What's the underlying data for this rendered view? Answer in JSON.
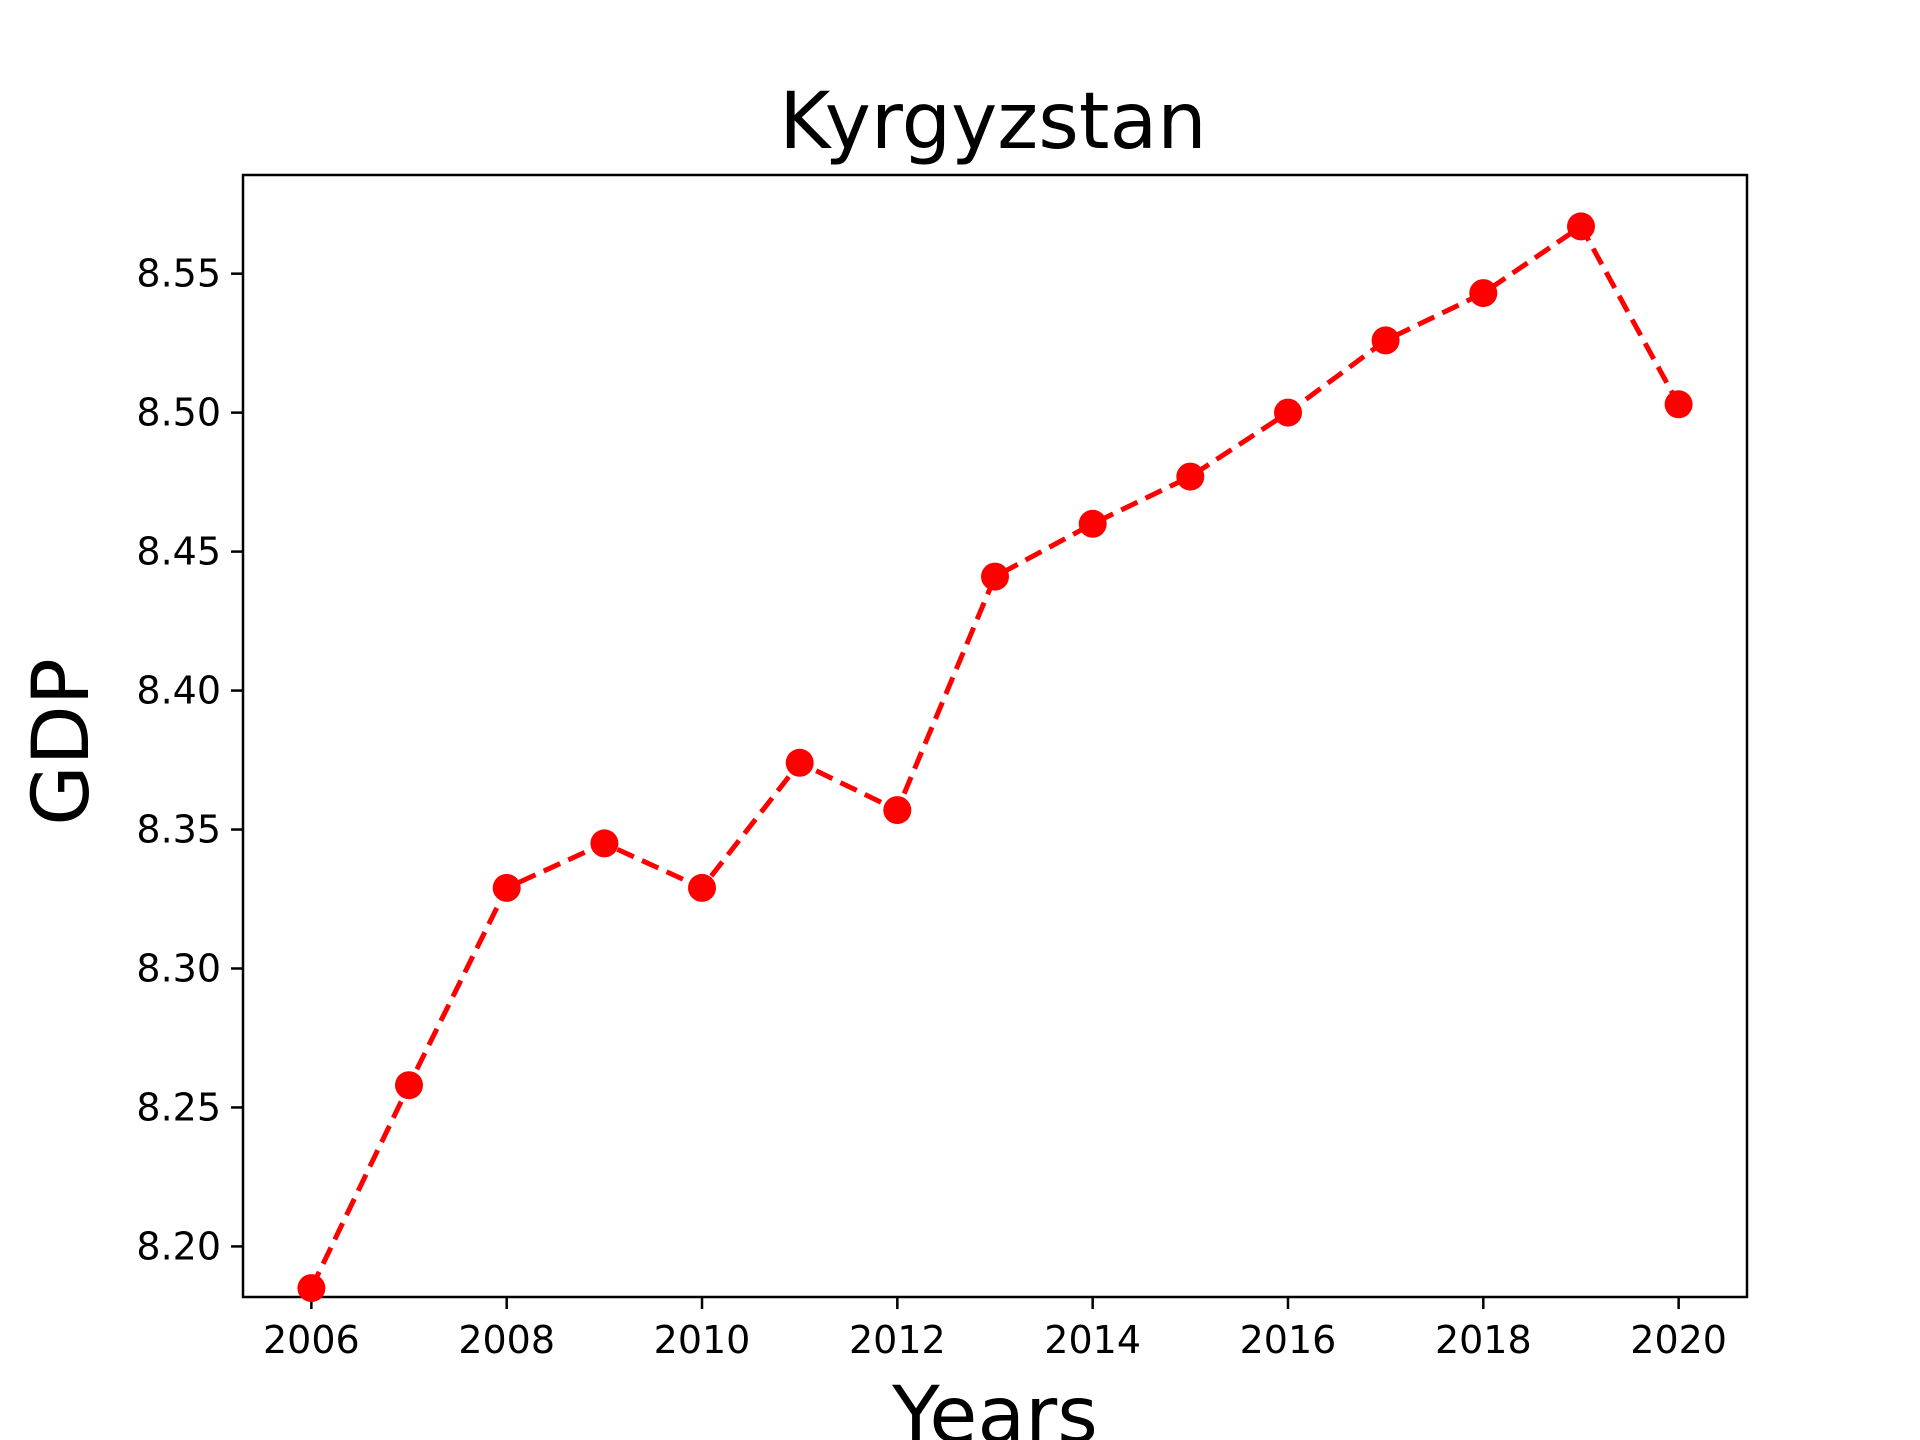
{
  "chart_data": {
    "type": "line",
    "title": "Kyrgyzstan",
    "xlabel": "Years",
    "ylabel": "GDP",
    "x": [
      2006,
      2007,
      2008,
      2009,
      2010,
      2011,
      2012,
      2013,
      2014,
      2015,
      2016,
      2017,
      2018,
      2019,
      2020
    ],
    "series": [
      {
        "values": [
          8.185,
          8.258,
          8.329,
          8.345,
          8.329,
          8.374,
          8.357,
          8.441,
          8.46,
          8.477,
          8.5,
          8.526,
          8.543,
          8.567,
          8.503
        ]
      }
    ],
    "x_ticks": [
      "2006",
      "2008",
      "2010",
      "2012",
      "2014",
      "2016",
      "2018",
      "2020"
    ],
    "y_ticks": [
      "8.20",
      "8.25",
      "8.30",
      "8.35",
      "8.40",
      "8.45",
      "8.50",
      "8.55"
    ],
    "xlim": [
      2005.3,
      2020.7
    ],
    "ylim": [
      8.1818,
      8.5855
    ],
    "line_style": "dashed",
    "marker": "circle",
    "colors": {
      "series": "#ff0000",
      "axes": "#000000",
      "background": "#ffffff"
    },
    "grid": false,
    "legend": "none"
  }
}
